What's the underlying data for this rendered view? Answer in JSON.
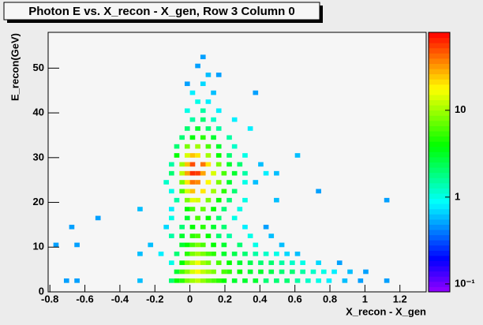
{
  "chart_data": {
    "type": "heatmap",
    "title": "Photon E vs. X_recon - X_gen, Row 3 Column 0",
    "x_label": "X_recon - X_gen",
    "y_label": "E_recon(GeV)",
    "xlim": [
      -0.81,
      1.35
    ],
    "ylim": [
      0,
      58
    ],
    "xticks": [
      -0.8,
      -0.6,
      -0.4,
      -0.2,
      0,
      0.2,
      0.4,
      0.6,
      0.8,
      1,
      1.2
    ],
    "yticks": [
      0,
      10,
      20,
      30,
      40,
      50
    ],
    "zlim": [
      0.081,
      79
    ],
    "zticks": [
      {
        "value": 0.1,
        "label": "10⁻¹"
      },
      1,
      10
    ],
    "log_z": true,
    "xbin_width": 0.03,
    "ybin_width": 1,
    "cells": [
      [
        -0.72,
        2,
        0.5
      ],
      [
        -0.66,
        2,
        0.5
      ],
      [
        -0.3,
        2,
        0.6
      ],
      [
        -0.12,
        2,
        2
      ],
      [
        -0.09,
        2,
        4
      ],
      [
        -0.06,
        2,
        5
      ],
      [
        -0.03,
        2,
        8
      ],
      [
        0,
        2,
        10
      ],
      [
        0.03,
        2,
        12
      ],
      [
        0.06,
        2,
        9
      ],
      [
        0.09,
        2,
        7
      ],
      [
        0.12,
        2,
        6
      ],
      [
        0.15,
        2,
        5
      ],
      [
        0.18,
        2,
        4
      ],
      [
        0.24,
        2,
        3
      ],
      [
        0.3,
        2,
        3
      ],
      [
        0.36,
        2,
        3
      ],
      [
        0.42,
        2,
        2
      ],
      [
        0.48,
        2,
        2
      ],
      [
        0.54,
        2,
        2
      ],
      [
        0.6,
        2,
        1.5
      ],
      [
        0.66,
        2,
        1.2
      ],
      [
        0.72,
        2,
        1
      ],
      [
        0.78,
        2,
        0.8
      ],
      [
        0.87,
        2,
        0.6
      ],
      [
        0.96,
        2,
        0.5
      ],
      [
        1.11,
        2,
        0.5
      ],
      [
        -0.09,
        4,
        3
      ],
      [
        -0.06,
        4,
        6
      ],
      [
        -0.03,
        4,
        9
      ],
      [
        0,
        4,
        14
      ],
      [
        0.03,
        4,
        18
      ],
      [
        0.06,
        4,
        12
      ],
      [
        0.09,
        4,
        10
      ],
      [
        0.12,
        4,
        8
      ],
      [
        0.18,
        4,
        6
      ],
      [
        0.21,
        4,
        5
      ],
      [
        0.27,
        4,
        4
      ],
      [
        0.33,
        4,
        3
      ],
      [
        0.39,
        4,
        3
      ],
      [
        0.45,
        4,
        2.5
      ],
      [
        0.51,
        4,
        2
      ],
      [
        0.57,
        4,
        2
      ],
      [
        0.63,
        4,
        1.5
      ],
      [
        0.69,
        4,
        1.2
      ],
      [
        0.75,
        4,
        1
      ],
      [
        0.81,
        4,
        0.8
      ],
      [
        0.9,
        4,
        0.6
      ],
      [
        0.99,
        4,
        0.5
      ],
      [
        -0.12,
        6,
        1
      ],
      [
        -0.06,
        6,
        4
      ],
      [
        -0.03,
        6,
        8
      ],
      [
        0,
        6,
        12
      ],
      [
        0.03,
        6,
        16
      ],
      [
        0.06,
        6,
        10
      ],
      [
        0.09,
        6,
        8
      ],
      [
        0.15,
        6,
        6
      ],
      [
        0.21,
        6,
        4
      ],
      [
        0.27,
        6,
        3
      ],
      [
        0.33,
        6,
        2.5
      ],
      [
        0.39,
        6,
        2
      ],
      [
        0.45,
        6,
        2
      ],
      [
        0.51,
        6,
        1.5
      ],
      [
        0.57,
        6,
        1.2
      ],
      [
        0.63,
        6,
        1
      ],
      [
        0.72,
        6,
        0.7
      ],
      [
        0.84,
        6,
        0.5
      ],
      [
        -0.3,
        8,
        0.6
      ],
      [
        -0.18,
        8,
        0.8
      ],
      [
        -0.09,
        8,
        2
      ],
      [
        -0.03,
        8,
        5
      ],
      [
        0,
        8,
        8
      ],
      [
        0.03,
        8,
        10
      ],
      [
        0.06,
        8,
        8
      ],
      [
        0.09,
        8,
        6
      ],
      [
        0.12,
        8,
        5
      ],
      [
        0.18,
        8,
        3
      ],
      [
        0.24,
        8,
        2.5
      ],
      [
        0.3,
        8,
        2
      ],
      [
        0.36,
        8,
        1.5
      ],
      [
        0.42,
        8,
        1.2
      ],
      [
        0.48,
        8,
        1
      ],
      [
        0.54,
        8,
        0.7
      ],
      [
        0.6,
        8,
        0.6
      ],
      [
        -0.78,
        10,
        0.5
      ],
      [
        -0.66,
        10,
        0.5
      ],
      [
        -0.24,
        10,
        0.6
      ],
      [
        -0.06,
        10,
        3
      ],
      [
        -0.03,
        10,
        4
      ],
      [
        0,
        10,
        6
      ],
      [
        0.03,
        10,
        8
      ],
      [
        0.06,
        10,
        6
      ],
      [
        0.12,
        10,
        4
      ],
      [
        0.18,
        10,
        3
      ],
      [
        0.27,
        10,
        2
      ],
      [
        0.36,
        10,
        1
      ],
      [
        0.51,
        10,
        0.6
      ],
      [
        -0.12,
        12,
        1.5
      ],
      [
        -0.06,
        12,
        3
      ],
      [
        0,
        12,
        5
      ],
      [
        0.03,
        12,
        6
      ],
      [
        0.09,
        12,
        4
      ],
      [
        0.15,
        12,
        2
      ],
      [
        0.21,
        12,
        1.5
      ],
      [
        0.33,
        12,
        1
      ],
      [
        0.45,
        12,
        0.6
      ],
      [
        -0.69,
        14,
        0.5
      ],
      [
        -0.15,
        14,
        0.7
      ],
      [
        -0.06,
        14,
        2
      ],
      [
        0,
        14,
        4
      ],
      [
        0.06,
        14,
        5
      ],
      [
        0.12,
        14,
        3
      ],
      [
        0.18,
        14,
        2
      ],
      [
        0.3,
        14,
        0.8
      ],
      [
        0.42,
        14,
        0.5
      ],
      [
        -0.54,
        16,
        0.5
      ],
      [
        -0.12,
        16,
        1
      ],
      [
        -0.03,
        16,
        3
      ],
      [
        0.03,
        16,
        6
      ],
      [
        0.09,
        16,
        4
      ],
      [
        0.15,
        16,
        2
      ],
      [
        0.24,
        16,
        1
      ],
      [
        -0.3,
        18,
        0.6
      ],
      [
        -0.12,
        18,
        0.8
      ],
      [
        -0.03,
        18,
        4
      ],
      [
        0,
        18,
        6
      ],
      [
        0.06,
        18,
        7
      ],
      [
        0.12,
        18,
        4
      ],
      [
        0.18,
        18,
        2
      ],
      [
        0.27,
        18,
        1
      ],
      [
        -0.09,
        20,
        1.5
      ],
      [
        -0.03,
        20,
        8
      ],
      [
        0,
        20,
        15
      ],
      [
        0.03,
        20,
        14
      ],
      [
        0.09,
        20,
        8
      ],
      [
        0.15,
        20,
        4
      ],
      [
        0.21,
        20,
        2
      ],
      [
        0.3,
        20,
        1
      ],
      [
        0.48,
        20,
        0.6
      ],
      [
        1.11,
        20,
        0.5
      ],
      [
        -0.12,
        22,
        1
      ],
      [
        -0.06,
        22,
        6
      ],
      [
        -0.03,
        22,
        14
      ],
      [
        0,
        22,
        25
      ],
      [
        0.06,
        22,
        20
      ],
      [
        0.12,
        22,
        10
      ],
      [
        0.18,
        22,
        5
      ],
      [
        0.24,
        22,
        2
      ],
      [
        0.72,
        22,
        0.5
      ],
      [
        -0.15,
        24,
        1.2
      ],
      [
        -0.06,
        24,
        8
      ],
      [
        -0.03,
        24,
        20
      ],
      [
        0,
        24,
        40
      ],
      [
        0.03,
        24,
        35
      ],
      [
        0.09,
        24,
        18
      ],
      [
        0.15,
        24,
        8
      ],
      [
        0.21,
        24,
        3
      ],
      [
        0.3,
        24,
        1
      ],
      [
        0.36,
        24,
        0.6
      ],
      [
        -0.12,
        26,
        2
      ],
      [
        -0.06,
        26,
        12
      ],
      [
        -0.03,
        26,
        30
      ],
      [
        0,
        26,
        60
      ],
      [
        0.03,
        26,
        55
      ],
      [
        0.06,
        26,
        30
      ],
      [
        0.12,
        26,
        14
      ],
      [
        0.18,
        26,
        6
      ],
      [
        0.24,
        26,
        3
      ],
      [
        0.3,
        26,
        1.5
      ],
      [
        0.42,
        26,
        0.8
      ],
      [
        0.48,
        26,
        0.6
      ],
      [
        -0.12,
        28,
        1.5
      ],
      [
        -0.06,
        28,
        10
      ],
      [
        -0.03,
        28,
        25
      ],
      [
        0,
        28,
        50
      ],
      [
        0.06,
        28,
        40
      ],
      [
        0.09,
        28,
        20
      ],
      [
        0.15,
        28,
        8
      ],
      [
        0.21,
        28,
        3
      ],
      [
        0.27,
        28,
        2
      ],
      [
        0.39,
        28,
        0.6
      ],
      [
        -0.09,
        30,
        4
      ],
      [
        -0.03,
        30,
        14
      ],
      [
        0,
        30,
        25
      ],
      [
        0.03,
        30,
        20
      ],
      [
        0.09,
        30,
        10
      ],
      [
        0.15,
        30,
        4
      ],
      [
        0.21,
        30,
        2
      ],
      [
        0.3,
        30,
        1
      ],
      [
        0.6,
        30,
        0.6
      ],
      [
        -0.09,
        32,
        2
      ],
      [
        -0.03,
        32,
        8
      ],
      [
        0.03,
        32,
        10
      ],
      [
        0.09,
        32,
        6
      ],
      [
        0.15,
        32,
        3
      ],
      [
        0.24,
        32,
        1.2
      ],
      [
        -0.06,
        34,
        2
      ],
      [
        0,
        34,
        4
      ],
      [
        0.06,
        34,
        5
      ],
      [
        0.12,
        34,
        3
      ],
      [
        0.21,
        34,
        1.5
      ],
      [
        -0.03,
        36,
        2
      ],
      [
        0.03,
        36,
        3
      ],
      [
        0.09,
        36,
        2
      ],
      [
        0.15,
        36,
        1.5
      ],
      [
        0.33,
        36,
        0.8
      ],
      [
        0,
        38,
        1.5
      ],
      [
        0.06,
        38,
        2
      ],
      [
        0.12,
        38,
        1.2
      ],
      [
        0.24,
        38,
        0.8
      ],
      [
        -0.03,
        40,
        1
      ],
      [
        0.06,
        40,
        1.5
      ],
      [
        0.15,
        40,
        0.8
      ],
      [
        0.03,
        42,
        1
      ],
      [
        0.09,
        42,
        0.8
      ],
      [
        0,
        44,
        0.8
      ],
      [
        0.12,
        44,
        0.6
      ],
      [
        0.36,
        44,
        0.5
      ],
      [
        -0.03,
        46,
        0.5
      ],
      [
        0.06,
        46,
        0.7
      ],
      [
        0.09,
        48,
        0.6
      ],
      [
        0.15,
        48,
        0.5
      ],
      [
        0.03,
        50,
        0.5
      ],
      [
        0.06,
        52,
        0.5
      ]
    ]
  }
}
